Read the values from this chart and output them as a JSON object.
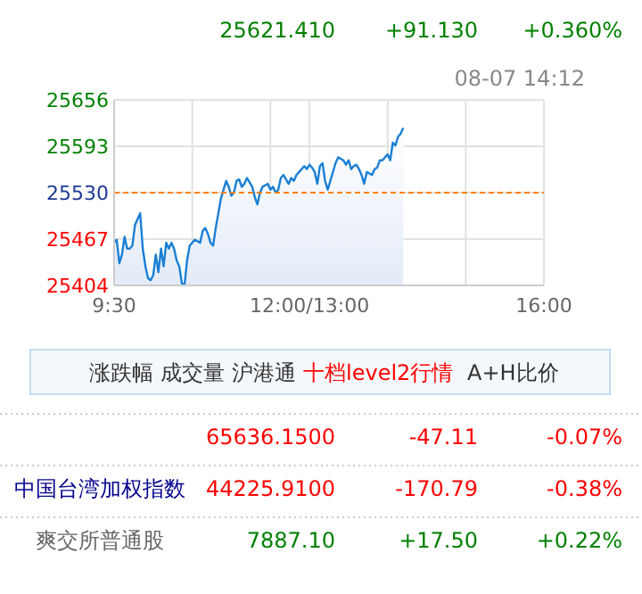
{
  "chart_data": {
    "type": "area",
    "color": "#1a7fd4",
    "grid": true,
    "categories": [
      "9:30",
      null,
      null,
      null,
      null,
      null,
      null,
      null,
      null,
      null,
      null,
      null,
      null,
      null,
      null,
      null,
      null,
      null,
      null,
      null,
      null,
      null,
      null,
      null,
      null,
      null,
      null,
      null,
      null,
      null,
      null,
      null,
      null,
      null,
      null,
      null,
      null,
      null,
      null,
      null,
      null,
      null,
      null,
      null,
      null,
      null,
      null,
      null,
      null,
      null,
      null,
      null,
      null,
      null,
      null,
      null,
      null,
      null,
      null,
      null,
      null,
      null,
      null,
      null,
      null,
      null,
      null,
      null,
      null,
      null,
      null,
      null,
      null,
      null,
      null,
      "12:00/13:00",
      null,
      null,
      null,
      null,
      null,
      null,
      null,
      null,
      null,
      null,
      null,
      null,
      null,
      null,
      null,
      null,
      null,
      null,
      null,
      null,
      null,
      null,
      null,
      null,
      null,
      null,
      null,
      null,
      null,
      null,
      null,
      null,
      null,
      null,
      null,
      null,
      null,
      null,
      null,
      null,
      null,
      null,
      null,
      null,
      null,
      null,
      null,
      null,
      null,
      null,
      null,
      null,
      null,
      null,
      null,
      null,
      null,
      null,
      null,
      null,
      null,
      null,
      null,
      null,
      null,
      null,
      null,
      null,
      null,
      null,
      null,
      null,
      null,
      null,
      null,
      null,
      null,
      null,
      null,
      null,
      null,
      null,
      null,
      null,
      null,
      null,
      null,
      null,
      null,
      "16:00"
    ],
    "values": [
      25462,
      25466,
      25434,
      25446,
      25470,
      25454,
      25454,
      25458,
      25486,
      25494,
      25502,
      25454,
      25430,
      25414,
      25411,
      25418,
      25446,
      25422,
      25454,
      25430,
      25462,
      25454,
      25462,
      25454,
      25438,
      25430,
      25407,
      25404,
      25438,
      25458,
      25462,
      25466,
      25464,
      25462,
      25478,
      25482,
      25474,
      25462,
      25458,
      25482,
      25502,
      25522,
      25534,
      25546,
      25538,
      25526,
      25530,
      25546,
      25548,
      25538,
      25542,
      25550,
      25544,
      25538,
      25524,
      25514,
      25530,
      25538,
      25540,
      25542,
      25534,
      25538,
      25530,
      25534,
      25550,
      25554,
      25548,
      25542,
      25550,
      25546,
      25554,
      25558,
      25562,
      25566,
      25562,
      25568,
      25564,
      25558,
      25542,
      25566,
      25570,
      25546,
      25534,
      25546,
      25558,
      25570,
      25578,
      25576,
      25574,
      25568,
      25574,
      25562,
      25566,
      25568,
      25562,
      25554,
      25542,
      25558,
      25556,
      25554,
      25562,
      25564,
      25574,
      25574,
      25578,
      25582,
      25574,
      25598,
      25594,
      25606,
      25610,
      25618,
      null,
      null,
      null,
      null,
      null,
      null,
      null,
      null,
      null,
      null,
      null,
      null,
      null,
      null,
      null,
      null,
      null,
      null,
      null,
      null,
      null,
      null,
      null,
      null,
      null,
      null,
      null,
      null,
      null,
      null,
      null,
      null,
      null,
      null,
      null,
      null,
      null,
      null,
      null,
      null,
      null,
      null,
      null,
      null,
      null,
      null,
      null,
      null,
      null,
      null,
      null,
      null,
      null,
      null
    ],
    "ylim": [
      25404,
      25656
    ],
    "yticks": [
      25404,
      25467,
      25530,
      25593,
      25656
    ],
    "ref_lines": [
      {
        "axis": "y",
        "value": 25530,
        "color": "#ff8000",
        "line_style": "dashed"
      }
    ],
    "annotations": [
      "25621.410",
      "+91.130",
      "+0.360%",
      "08-07 14:12",
      "涨跌幅",
      "成交量",
      "沪港通",
      "十档level2行情",
      "A+H比价",
      "65636.1500",
      "-47.11",
      "-0.07%",
      "中国台湾加权指数",
      "44225.9100",
      "-170.79",
      "-0.38%",
      "爽交所普通股",
      "7887.10",
      "+17.50",
      "+0.22%"
    ]
  }
}
